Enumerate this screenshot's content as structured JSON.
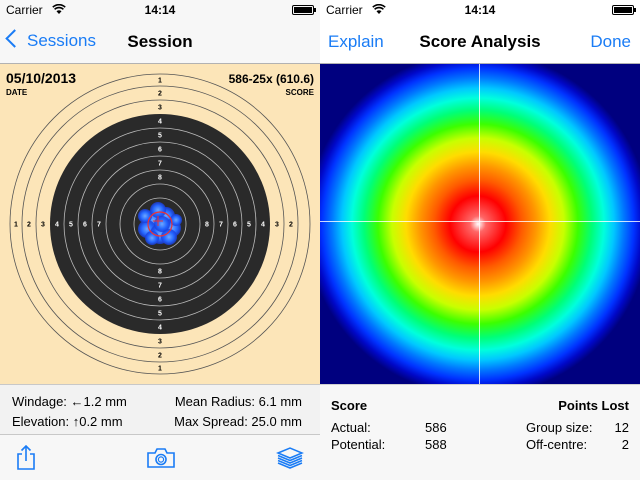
{
  "status": {
    "carrier": "Carrier",
    "time": "14:14",
    "battery_level": 1.0
  },
  "left": {
    "nav": {
      "back_label": "Sessions",
      "title": "Session"
    },
    "target": {
      "date": "05/10/2013",
      "date_label": "DATE",
      "score": "586-25x (610.6)",
      "score_label": "SCORE",
      "ring_labels_vertical": [
        "1",
        "2",
        "3",
        "4",
        "5",
        "6",
        "7",
        "8",
        "8",
        "7",
        "6",
        "5",
        "4",
        "3",
        "2",
        "1"
      ],
      "ring_labels_left": [
        "1",
        "2",
        "3",
        "4",
        "5",
        "6",
        "7"
      ],
      "ring_labels_right": [
        "8",
        "7",
        "6",
        "5",
        "4",
        "3",
        "2"
      ]
    },
    "stats": {
      "windage_label": "Windage:",
      "windage_value": "1.2 mm",
      "elevation_label": "Elevation:",
      "elevation_value": "0.2 mm",
      "mean_radius": "Mean Radius: 6.1 mm",
      "max_spread": "Max Spread: 25.0 mm"
    },
    "toolbar": {
      "share_icon": "share-icon",
      "camera_icon": "camera-icon",
      "layers_icon": "layers-icon"
    }
  },
  "right": {
    "nav": {
      "left_label": "Explain",
      "title": "Score Analysis",
      "right_label": "Done"
    },
    "analysis": {
      "score_header": "Score",
      "points_lost_header": "Points Lost",
      "actual_label": "Actual:",
      "actual_value": "586",
      "potential_label": "Potential:",
      "potential_value": "588",
      "group_size_label": "Group size:",
      "group_size_value": "12",
      "off_centre_label": "Off-centre:",
      "off_centre_value": "2"
    }
  },
  "colors": {
    "accent": "#1a7cf5",
    "target_background": "#fce5b8",
    "black_zone": "#2a2a2a"
  }
}
